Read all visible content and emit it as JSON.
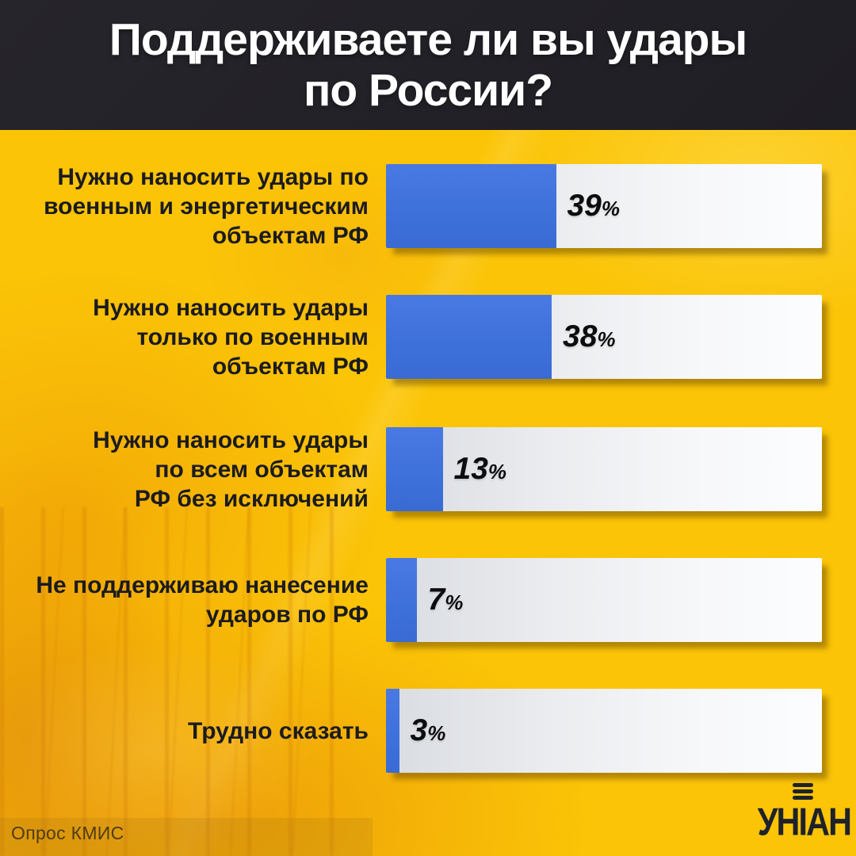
{
  "header": {
    "title": "Поддерживаете ли вы удары\nпо России?"
  },
  "chart_data": {
    "type": "bar",
    "orientation": "horizontal",
    "title": "Поддерживаете ли вы удары по России?",
    "categories": [
      "Нужно наносить удары по военным и энергетическим объектам РФ",
      "Нужно наносить удары только по военным объектам РФ",
      "Нужно наносить удары по всем объектам РФ без исключений",
      "Не поддерживаю нанесение ударов по РФ",
      "Трудно сказать"
    ],
    "values": [
      39,
      38,
      13,
      7,
      3
    ],
    "unit": "%",
    "xlim": [
      0,
      100
    ],
    "grid": false,
    "legend": false,
    "source": "Опрос КМИС",
    "bar_color": "#3f71db",
    "track_color": "#f2f4f6"
  },
  "rows": [
    {
      "label": "Нужно наносить удары по\nвоенным и энергетическим\nобъектам РФ",
      "value": "39",
      "unit": "%",
      "pct": 39
    },
    {
      "label": "Нужно наносить удары\nтолько по военным\nобъектам РФ",
      "value": "38",
      "unit": "%",
      "pct": 38
    },
    {
      "label": "Нужно наносить удары\nпо всем объектам\nРФ без исключений",
      "value": "13",
      "unit": "%",
      "pct": 13
    },
    {
      "label": "Не поддерживаю нанесение\nударов по РФ",
      "value": "7",
      "unit": "%",
      "pct": 7
    },
    {
      "label": "Трудно сказать",
      "value": "3",
      "unit": "%",
      "pct": 3
    }
  ],
  "footer": {
    "source": "Опрос КМИС",
    "logo_text": "УНІАН"
  },
  "colors": {
    "background_yellow": "#fbc407",
    "header_dark": "#232228",
    "bar_blue": "#3f71db",
    "bar_track": "#f2f4f6",
    "label_dark": "#1b1b20",
    "logo_dark": "#1e222b"
  }
}
